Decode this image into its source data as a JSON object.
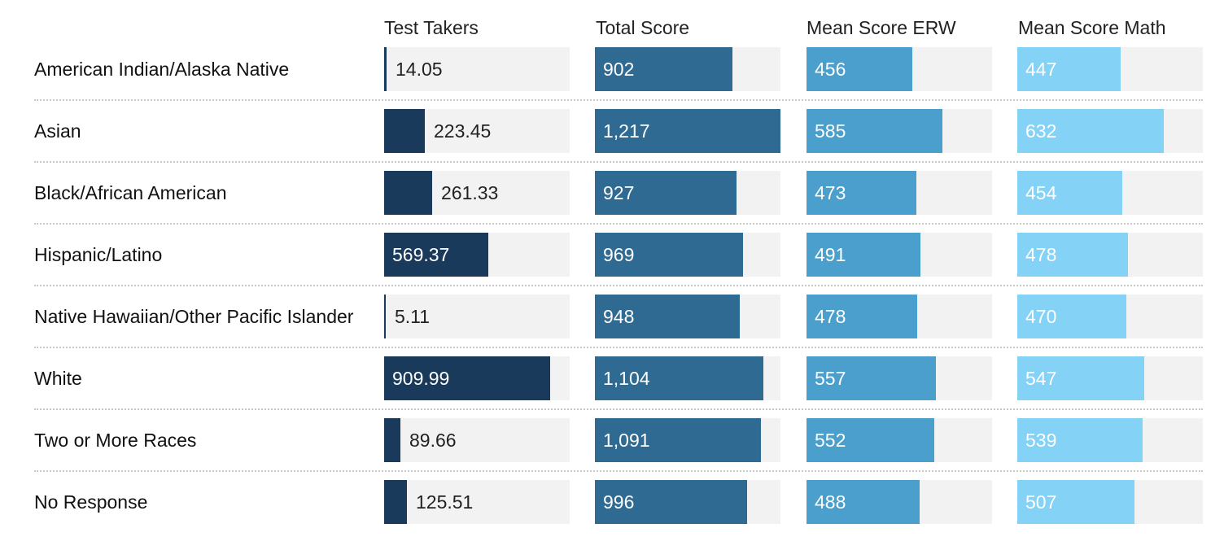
{
  "chart_data": {
    "type": "table",
    "columns": [
      {
        "key": "test_takers",
        "label": "Test Takers",
        "max": 1016,
        "color": "#1a3a5c",
        "format": "decimal2"
      },
      {
        "key": "total_score",
        "label": "Total Score",
        "max": 1217,
        "color": "#2e6a92",
        "format": "int_comma"
      },
      {
        "key": "erw",
        "label": "Mean Score ERW",
        "max": 800,
        "color": "#4a9fcd",
        "format": "int"
      },
      {
        "key": "math",
        "label": "Mean Score Math",
        "max": 800,
        "color": "#84d2f6",
        "format": "int"
      }
    ],
    "rows": [
      {
        "label": "American Indian/Alaska Native",
        "values": [
          14.05,
          902,
          456,
          447
        ],
        "display": [
          "14.05",
          "902",
          "456",
          "447"
        ]
      },
      {
        "label": "Asian",
        "values": [
          223.45,
          1217,
          585,
          632
        ],
        "display": [
          "223.45",
          "1,217",
          "585",
          "632"
        ]
      },
      {
        "label": "Black/African American",
        "values": [
          261.33,
          927,
          473,
          454
        ],
        "display": [
          "261.33",
          "927",
          "473",
          "454"
        ]
      },
      {
        "label": "Hispanic/Latino",
        "values": [
          569.37,
          969,
          491,
          478
        ],
        "display": [
          "569.37",
          "969",
          "491",
          "478"
        ]
      },
      {
        "label": "Native Hawaiian/Other Pacific Islander",
        "values": [
          5.11,
          948,
          478,
          470
        ],
        "display": [
          "5.11",
          "948",
          "478",
          "470"
        ]
      },
      {
        "label": "White",
        "values": [
          909.99,
          1104,
          557,
          547
        ],
        "display": [
          "909.99",
          "1,104",
          "557",
          "547"
        ]
      },
      {
        "label": "Two or More Races",
        "values": [
          89.66,
          1091,
          552,
          539
        ],
        "display": [
          "89.66",
          "1,091",
          "552",
          "539"
        ]
      },
      {
        "label": "No Response",
        "values": [
          125.51,
          996,
          488,
          507
        ],
        "display": [
          "125.51",
          "996",
          "488",
          "507"
        ]
      }
    ]
  }
}
